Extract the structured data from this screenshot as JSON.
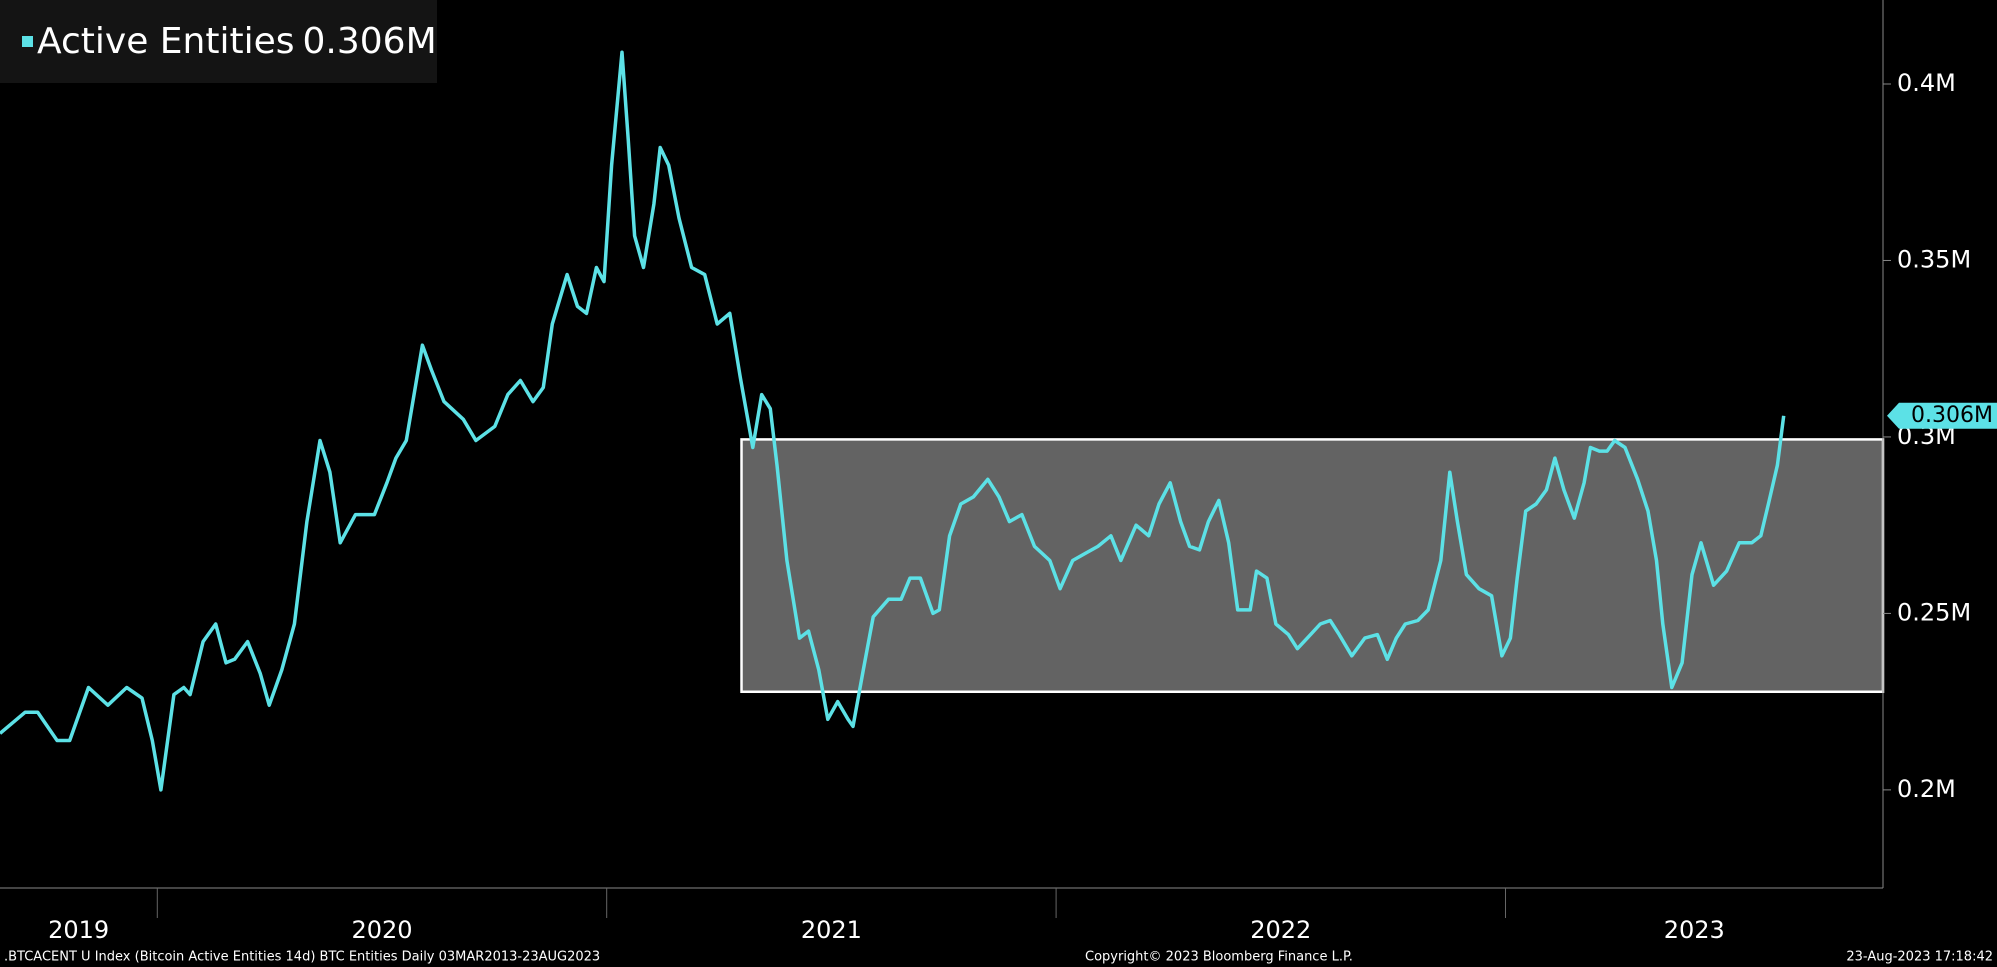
{
  "chart_data": {
    "type": "line",
    "series": [
      {
        "name": "Active Entities",
        "color": "#5ce1e6",
        "last_value": 0.306,
        "last_label": "0.306M",
        "values": [
          0.216,
          0.222,
          0.222,
          0.214,
          0.214,
          0.229,
          0.224,
          0.229,
          0.226,
          0.214,
          0.2,
          0.227,
          0.229,
          0.227,
          0.242,
          0.247,
          0.236,
          0.237,
          0.242,
          0.233,
          0.224,
          0.234,
          0.247,
          0.276,
          0.299,
          0.29,
          0.27,
          0.278,
          0.278,
          0.287,
          0.294,
          0.299,
          0.326,
          0.319,
          0.31,
          0.305,
          0.299,
          0.303,
          0.312,
          0.316,
          0.31,
          0.314,
          0.332,
          0.346,
          0.337,
          0.335,
          0.348,
          0.344,
          0.377,
          0.409,
          0.384,
          0.357,
          0.348,
          0.366,
          0.382,
          0.377,
          0.362,
          0.348,
          0.346,
          0.332,
          0.335,
          0.317,
          0.297,
          0.312,
          0.308,
          0.292,
          0.265,
          0.243,
          0.245,
          0.234,
          0.22,
          0.225,
          0.22,
          0.218,
          0.234,
          0.249,
          0.254,
          0.254,
          0.26,
          0.26,
          0.25,
          0.251,
          0.272,
          0.281,
          0.283,
          0.288,
          0.283,
          0.276,
          0.278,
          0.269,
          0.265,
          0.257,
          0.265,
          0.267,
          0.269,
          0.272,
          0.265,
          0.275,
          0.272,
          0.281,
          0.287,
          0.276,
          0.269,
          0.268,
          0.276,
          0.282,
          0.27,
          0.251,
          0.251,
          0.262,
          0.26,
          0.247,
          0.244,
          0.24,
          0.243,
          0.247,
          0.248,
          0.244,
          0.238,
          0.243,
          0.244,
          0.237,
          0.243,
          0.247,
          0.248,
          0.251,
          0.265,
          0.29,
          0.276,
          0.261,
          0.257,
          0.255,
          0.238,
          0.243,
          0.26,
          0.279,
          0.281,
          0.285,
          0.294,
          0.285,
          0.277,
          0.287,
          0.297,
          0.296,
          0.296,
          0.299,
          0.297,
          0.288,
          0.279,
          0.265,
          0.247,
          0.229,
          0.236,
          0.261,
          0.27,
          0.258,
          0.262,
          0.27,
          0.27,
          0.272,
          0.281,
          0.292,
          0.306
        ]
      }
    ],
    "x": [
      2019.65,
      2019.706,
      2019.734,
      2019.777,
      2019.805,
      2019.847,
      2019.89,
      2019.932,
      2019.966,
      2019.989,
      2020.008,
      2020.037,
      2020.059,
      2020.073,
      2020.102,
      2020.13,
      2020.153,
      2020.172,
      2020.201,
      2020.229,
      2020.249,
      2020.277,
      2020.305,
      2020.333,
      2020.362,
      2020.384,
      2020.407,
      2020.441,
      2020.483,
      2020.511,
      2020.531,
      2020.554,
      2020.59,
      2020.61,
      2020.638,
      2020.681,
      2020.709,
      2020.751,
      2020.78,
      2020.808,
      2020.836,
      2020.859,
      2020.879,
      2020.912,
      2020.935,
      2020.955,
      2020.977,
      2020.994,
      2021.011,
      2021.034,
      2021.048,
      2021.062,
      2021.082,
      2021.105,
      2021.119,
      2021.138,
      2021.161,
      2021.189,
      2021.218,
      2021.246,
      2021.274,
      2021.297,
      2021.325,
      2021.345,
      2021.364,
      2021.379,
      2021.401,
      2021.429,
      2021.449,
      2021.472,
      2021.492,
      2021.514,
      2021.537,
      2021.548,
      2021.571,
      2021.593,
      2021.627,
      2021.655,
      2021.675,
      2021.698,
      2021.726,
      2021.74,
      2021.763,
      2021.788,
      2021.816,
      2021.848,
      2021.873,
      2021.896,
      2021.924,
      2021.952,
      2021.986,
      2022.009,
      2022.037,
      2022.065,
      2022.093,
      2022.122,
      2022.144,
      2022.178,
      2022.206,
      2022.229,
      2022.254,
      2022.277,
      2022.297,
      2022.319,
      2022.339,
      2022.362,
      2022.384,
      2022.404,
      2022.432,
      2022.446,
      2022.469,
      2022.489,
      2022.517,
      2022.537,
      2022.559,
      2022.588,
      2022.61,
      2022.63,
      2022.658,
      2022.687,
      2022.715,
      2022.737,
      2022.757,
      2022.777,
      2022.805,
      2022.828,
      2022.856,
      2022.876,
      2022.893,
      2022.913,
      2022.941,
      2022.969,
      2022.992,
      2023.011,
      2023.026,
      2023.045,
      2023.068,
      2023.091,
      2023.11,
      2023.13,
      2023.153,
      2023.175,
      2023.189,
      2023.209,
      2023.226,
      2023.243,
      2023.266,
      2023.294,
      2023.317,
      2023.336,
      2023.35,
      2023.37,
      2023.393,
      2023.415,
      2023.435,
      2023.463,
      2023.492,
      2023.52,
      2023.548,
      2023.568,
      2023.585,
      2023.605,
      2023.619
    ],
    "xlim": [
      2019.65,
      2023.84
    ],
    "xticks": [
      2019,
      2020,
      2021,
      2022,
      2023
    ],
    "ylim": [
      0.1722,
      0.4238
    ],
    "yticks": [
      {
        "value": 0.2,
        "label": "0.2M"
      },
      {
        "value": 0.25,
        "label": "0.25M"
      },
      {
        "value": 0.3,
        "label": "0.3M"
      },
      {
        "value": 0.35,
        "label": "0.35M"
      },
      {
        "value": 0.4,
        "label": "0.4M"
      }
    ],
    "highlight": {
      "xlim": [
        2021.3,
        2023.84
      ],
      "ylim": [
        0.2278,
        0.2993
      ]
    },
    "source": ".BTCACENT U Index (Bitcoin Active Entities 14d) BTC Entities  Daily 03MAR2013-23AUG2023",
    "copyright": "Copyright© 2023 Bloomberg Finance L.P.",
    "timestamp": "23-Aug-2023 17:18:42"
  }
}
